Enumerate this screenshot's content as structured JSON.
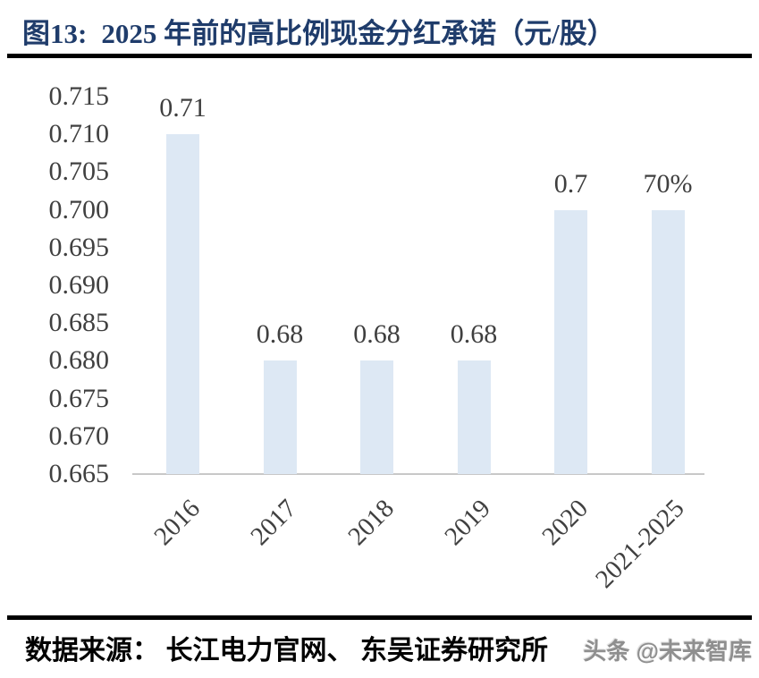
{
  "header": {
    "figure_label": "图13:",
    "title": "2025 年前的高比例现金分红承诺（元/股）",
    "title_color": "#1f3c6b"
  },
  "chart_data": {
    "type": "bar",
    "title": "2025 年前的高比例现金分红承诺（元/股）",
    "categories": [
      "2016",
      "2017",
      "2018",
      "2019",
      "2020",
      "2021-2025"
    ],
    "values": [
      0.71,
      0.68,
      0.68,
      0.68,
      0.7,
      0.7
    ],
    "data_labels": [
      "0.71",
      "0.68",
      "0.68",
      "0.68",
      "0.7",
      "70%"
    ],
    "xlabel": "",
    "ylabel": "",
    "ylim": [
      0.665,
      0.715
    ],
    "ytick_step": 0.005,
    "yticks": [
      "0.715",
      "0.710",
      "0.705",
      "0.700",
      "0.695",
      "0.690",
      "0.685",
      "0.680",
      "0.675",
      "0.670",
      "0.665"
    ],
    "grid": false,
    "legend_position": "none",
    "bar_color": "#dde8f4",
    "axis_line_color": "#c8c8c8",
    "tick_label_color": "#404040",
    "data_label_color": "#3f3f3f"
  },
  "footer": {
    "source_text": "数据来源： 长江电力官网、 东吴证券研究所",
    "watermark": "头条 @未来智库"
  }
}
